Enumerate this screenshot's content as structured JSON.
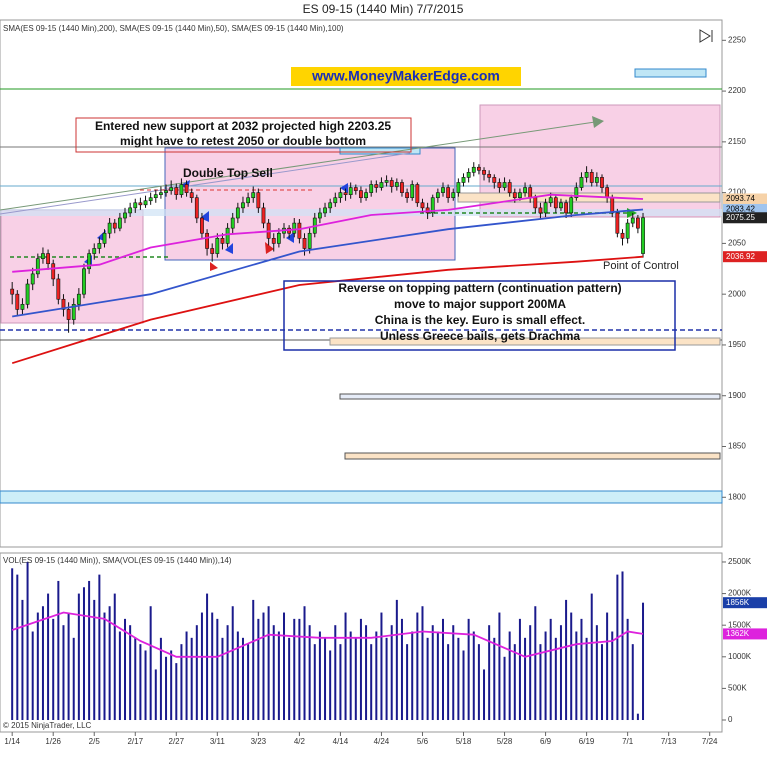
{
  "chart_data": {
    "type": "candlestick",
    "title": "ES 09-15 (1440 Min)  7/7/2015",
    "indicator_label": "SMA(ES 09-15 (1440 Min),200), SMA(ES 09-15 (1440 Min),50), SMA(ES 09-15 (1440 Min),100)",
    "volume_label": "VOL(ES 09-15 (1440 Min)), SMA(VOL(ES 09-15 (1440 Min)),14)",
    "copyright": "© 2015 NinjaTrader, LLC",
    "annotations": {
      "website": "www.MoneyMakerEdge.com",
      "support_note": [
        "Entered new support at 2032 projected high 2203.25",
        "might have to retest 2050 or double bottom"
      ],
      "double_top": "Double Top Sell",
      "reversal_note": [
        "Reverse on topping pattern (continuation pattern)",
        "move to major support 200MA",
        "China is the key. Euro is small effect.",
        "Unless Greece bails, gets Drachma"
      ],
      "point_of_control": "Point of Control"
    },
    "up_color": "#22cc22",
    "down_color": "#ee2222",
    "candles": [
      [
        2005,
        2012,
        1990,
        2000
      ],
      [
        2000,
        2004,
        1978,
        1985
      ],
      [
        1985,
        1996,
        1980,
        1990
      ],
      [
        1990,
        2015,
        1986,
        2010
      ],
      [
        2010,
        2026,
        2004,
        2020
      ],
      [
        2020,
        2040,
        2016,
        2035
      ],
      [
        2035,
        2046,
        2030,
        2040
      ],
      [
        2040,
        2044,
        2024,
        2030
      ],
      [
        2030,
        2034,
        2008,
        2015
      ],
      [
        2015,
        2020,
        1990,
        1995
      ],
      [
        1995,
        2000,
        1978,
        1985
      ],
      [
        1985,
        1992,
        1962,
        1975
      ],
      [
        1975,
        1996,
        1970,
        1990
      ],
      [
        1990,
        2006,
        1984,
        2000
      ],
      [
        2000,
        2030,
        1996,
        2025
      ],
      [
        2025,
        2044,
        2020,
        2040
      ],
      [
        2040,
        2050,
        2034,
        2045
      ],
      [
        2045,
        2056,
        2040,
        2050
      ],
      [
        2050,
        2064,
        2046,
        2060
      ],
      [
        2060,
        2075,
        2055,
        2070
      ],
      [
        2070,
        2074,
        2060,
        2065
      ],
      [
        2065,
        2080,
        2062,
        2075
      ],
      [
        2075,
        2085,
        2070,
        2080
      ],
      [
        2080,
        2090,
        2076,
        2085
      ],
      [
        2085,
        2094,
        2080,
        2090
      ],
      [
        2090,
        2095,
        2083,
        2088
      ],
      [
        2088,
        2097,
        2085,
        2092
      ],
      [
        2092,
        2100,
        2088,
        2095
      ],
      [
        2095,
        2103,
        2090,
        2098
      ],
      [
        2098,
        2106,
        2094,
        2100
      ],
      [
        2100,
        2108,
        2096,
        2102
      ],
      [
        2102,
        2112,
        2098,
        2105
      ],
      [
        2105,
        2109,
        2093,
        2098
      ],
      [
        2098,
        2114,
        2095,
        2108
      ],
      [
        2108,
        2112,
        2096,
        2100
      ],
      [
        2100,
        2104,
        2090,
        2095
      ],
      [
        2095,
        2098,
        2070,
        2075
      ],
      [
        2075,
        2080,
        2055,
        2060
      ],
      [
        2060,
        2064,
        2038,
        2045
      ],
      [
        2045,
        2050,
        2032,
        2040
      ],
      [
        2040,
        2060,
        2036,
        2055
      ],
      [
        2055,
        2060,
        2044,
        2050
      ],
      [
        2050,
        2070,
        2046,
        2065
      ],
      [
        2065,
        2080,
        2060,
        2075
      ],
      [
        2075,
        2090,
        2070,
        2085
      ],
      [
        2085,
        2096,
        2080,
        2090
      ],
      [
        2090,
        2100,
        2086,
        2095
      ],
      [
        2095,
        2106,
        2090,
        2100
      ],
      [
        2100,
        2104,
        2080,
        2085
      ],
      [
        2085,
        2090,
        2065,
        2070
      ],
      [
        2070,
        2074,
        2048,
        2055
      ],
      [
        2055,
        2060,
        2042,
        2050
      ],
      [
        2050,
        2065,
        2046,
        2060
      ],
      [
        2060,
        2070,
        2055,
        2065
      ],
      [
        2065,
        2068,
        2055,
        2060
      ],
      [
        2060,
        2075,
        2056,
        2070
      ],
      [
        2070,
        2074,
        2050,
        2055
      ],
      [
        2055,
        2060,
        2038,
        2045
      ],
      [
        2045,
        2065,
        2040,
        2060
      ],
      [
        2060,
        2080,
        2056,
        2075
      ],
      [
        2075,
        2085,
        2070,
        2080
      ],
      [
        2080,
        2090,
        2076,
        2085
      ],
      [
        2085,
        2094,
        2080,
        2090
      ],
      [
        2090,
        2100,
        2086,
        2095
      ],
      [
        2095,
        2105,
        2090,
        2100
      ],
      [
        2100,
        2104,
        2092,
        2098
      ],
      [
        2098,
        2110,
        2094,
        2105
      ],
      [
        2105,
        2108,
        2098,
        2102
      ],
      [
        2102,
        2106,
        2090,
        2095
      ],
      [
        2095,
        2104,
        2092,
        2100
      ],
      [
        2100,
        2112,
        2096,
        2108
      ],
      [
        2108,
        2112,
        2100,
        2105
      ],
      [
        2105,
        2115,
        2102,
        2110
      ],
      [
        2110,
        2117,
        2106,
        2112
      ],
      [
        2112,
        2115,
        2100,
        2106
      ],
      [
        2106,
        2114,
        2102,
        2110
      ],
      [
        2110,
        2113,
        2096,
        2100
      ],
      [
        2100,
        2104,
        2090,
        2095
      ],
      [
        2095,
        2112,
        2092,
        2108
      ],
      [
        2108,
        2110,
        2086,
        2090
      ],
      [
        2090,
        2094,
        2080,
        2085
      ],
      [
        2085,
        2090,
        2074,
        2080
      ],
      [
        2080,
        2098,
        2076,
        2095
      ],
      [
        2095,
        2104,
        2090,
        2100
      ],
      [
        2100,
        2110,
        2096,
        2105
      ],
      [
        2105,
        2108,
        2090,
        2095
      ],
      [
        2095,
        2104,
        2092,
        2100
      ],
      [
        2100,
        2114,
        2096,
        2110
      ],
      [
        2110,
        2119,
        2106,
        2115
      ],
      [
        2115,
        2124,
        2110,
        2120
      ],
      [
        2120,
        2130,
        2116,
        2125
      ],
      [
        2125,
        2128,
        2118,
        2122
      ],
      [
        2122,
        2125,
        2112,
        2118
      ],
      [
        2118,
        2122,
        2110,
        2115
      ],
      [
        2115,
        2118,
        2104,
        2110
      ],
      [
        2110,
        2114,
        2100,
        2105
      ],
      [
        2105,
        2115,
        2102,
        2110
      ],
      [
        2110,
        2113,
        2096,
        2100
      ],
      [
        2100,
        2104,
        2090,
        2095
      ],
      [
        2095,
        2104,
        2092,
        2100
      ],
      [
        2100,
        2110,
        2096,
        2105
      ],
      [
        2105,
        2108,
        2090,
        2095
      ],
      [
        2095,
        2098,
        2080,
        2085
      ],
      [
        2085,
        2090,
        2074,
        2080
      ],
      [
        2080,
        2094,
        2076,
        2090
      ],
      [
        2090,
        2100,
        2086,
        2095
      ],
      [
        2095,
        2098,
        2080,
        2085
      ],
      [
        2085,
        2094,
        2082,
        2090
      ],
      [
        2090,
        2093,
        2075,
        2080
      ],
      [
        2080,
        2098,
        2076,
        2095
      ],
      [
        2095,
        2110,
        2092,
        2105
      ],
      [
        2105,
        2120,
        2102,
        2115
      ],
      [
        2115,
        2126,
        2110,
        2120
      ],
      [
        2120,
        2123,
        2106,
        2110
      ],
      [
        2110,
        2120,
        2106,
        2115
      ],
      [
        2115,
        2118,
        2100,
        2105
      ],
      [
        2105,
        2108,
        2090,
        2095
      ],
      [
        2095,
        2098,
        2076,
        2080
      ],
      [
        2080,
        2084,
        2056,
        2060
      ],
      [
        2060,
        2064,
        2048,
        2055
      ],
      [
        2055,
        2074,
        2050,
        2070
      ],
      [
        2070,
        2080,
        2066,
        2075
      ],
      [
        2075,
        2078,
        2060,
        2065
      ],
      [
        2040,
        2080,
        2036,
        2075.25
      ]
    ],
    "volume": [
      2400000,
      2300000,
      1900000,
      2500000,
      1400000,
      1700000,
      1800000,
      2000000,
      1600000,
      2200000,
      1500000,
      1700000,
      1300000,
      2000000,
      2100000,
      2200000,
      1900000,
      2300000,
      1700000,
      1800000,
      2000000,
      1400000,
      1600000,
      1500000,
      1300000,
      1200000,
      1100000,
      1800000,
      800000,
      1300000,
      1000000,
      1100000,
      900000,
      1200000,
      1400000,
      1300000,
      1500000,
      1700000,
      2000000,
      1700000,
      1600000,
      1300000,
      1500000,
      1800000,
      1400000,
      1300000,
      1200000,
      1900000,
      1600000,
      1700000,
      1800000,
      1500000,
      1400000,
      1700000,
      1300000,
      1600000,
      1600000,
      1800000,
      1500000,
      1200000,
      1400000,
      1300000,
      1100000,
      1500000,
      1200000,
      1700000,
      1400000,
      1300000,
      1600000,
      1500000,
      1200000,
      1400000,
      1700000,
      1300000,
      1500000,
      1900000,
      1600000,
      1200000,
      1400000,
      1700000,
      1800000,
      1300000,
      1500000,
      1400000,
      1600000,
      1200000,
      1500000,
      1300000,
      1100000,
      1600000,
      1400000,
      1200000,
      800000,
      1500000,
      1300000,
      1700000,
      1000000,
      1400000,
      1200000,
      1600000,
      1300000,
      1500000,
      1800000,
      1200000,
      1400000,
      1600000,
      1300000,
      1500000,
      1900000,
      1700000,
      1400000,
      1600000,
      1300000,
      2000000,
      1500000,
      1200000,
      1700000,
      1400000,
      2300000,
      2350000,
      1600000,
      1200000,
      100000,
      1856000
    ],
    "volume_color": "#1a1a8c",
    "sma_lines": [
      {
        "color": "#dd1111",
        "x": [
          0,
          27,
          56,
          85,
          110,
          123
        ],
        "values": [
          1932,
          1975,
          2009,
          2024,
          2032,
          2036.92
        ]
      },
      {
        "color": "#3355cc",
        "x": [
          0,
          27,
          56,
          85,
          110,
          123
        ],
        "values": [
          1978,
          2000,
          2042,
          2064,
          2078,
          2083.42
        ]
      },
      {
        "color": "#dd22dd",
        "x": [
          0,
          17,
          27,
          42,
          56,
          70,
          85,
          105,
          123
        ],
        "values": [
          2022,
          2029,
          2046,
          2059,
          2064,
          2078,
          2083,
          2098,
          2093.74
        ]
      }
    ],
    "volume_sma": {
      "color": "#dd22dd",
      "x": [
        0,
        10,
        18,
        25,
        32,
        40,
        50,
        60,
        70,
        80,
        90,
        100,
        110,
        117,
        120,
        123
      ],
      "values": [
        1424000,
        1700000,
        1600000,
        1250000,
        1000000,
        1000000,
        1350000,
        1300000,
        1300000,
        1400000,
        1350000,
        1000000,
        1200000,
        1250000,
        1400000,
        1362000
      ]
    },
    "price_labels": {
      "values": [
        2093.74,
        2083.42,
        2075.25,
        2036.92
      ],
      "colors": [
        "#f6d2a8",
        "#9fc4ee",
        "#222222",
        "#dd2222"
      ],
      "text_colors": [
        "#000000",
        "#000000",
        "#ffffff",
        "#ffffff"
      ]
    },
    "volume_labels": {
      "values": [
        {
          "value": 1856000,
          "label": "1856K"
        },
        {
          "value": 1362000,
          "label": "1362K"
        }
      ],
      "colors": [
        "#1a3fa8",
        "#dd22dd"
      ]
    },
    "xlim": [
      -1.4,
      138.4
    ],
    "xticks": [
      {
        "value": 0,
        "label": "1/14"
      },
      {
        "value": 8,
        "label": "1/26"
      },
      {
        "value": 16,
        "label": "2/5"
      },
      {
        "value": 24,
        "label": "2/17"
      },
      {
        "value": 32,
        "label": "2/27"
      },
      {
        "value": 40,
        "label": "3/11"
      },
      {
        "value": 48,
        "label": "3/23"
      },
      {
        "value": 56,
        "label": "4/2"
      },
      {
        "value": 64,
        "label": "4/14"
      },
      {
        "value": 72,
        "label": "4/24"
      },
      {
        "value": 80,
        "label": "5/6"
      },
      {
        "value": 88,
        "label": "5/18"
      },
      {
        "value": 96,
        "label": "5/28"
      },
      {
        "value": 104,
        "label": "6/9"
      },
      {
        "value": 112,
        "label": "6/19"
      },
      {
        "value": 120,
        "label": "7/1"
      },
      {
        "value": 128,
        "label": "7/13"
      },
      {
        "value": 136,
        "label": "7/24"
      }
    ],
    "ylim": [
      1753,
      2270
    ],
    "yticks": [
      1800,
      1850,
      1900,
      1950,
      2000,
      2050,
      2100,
      2150,
      2200,
      2250
    ],
    "vol_ylim": [
      -158000,
      2642000
    ],
    "vol_yticks": [
      {
        "value": 0,
        "label": "0"
      },
      {
        "value": 500000,
        "label": "500K"
      },
      {
        "value": 1000000,
        "label": "1000K"
      },
      {
        "value": 1500000,
        "label": "1500K"
      },
      {
        "value": 2000000,
        "label": "2000K"
      },
      {
        "value": 2500000,
        "label": "2500K"
      }
    ]
  }
}
